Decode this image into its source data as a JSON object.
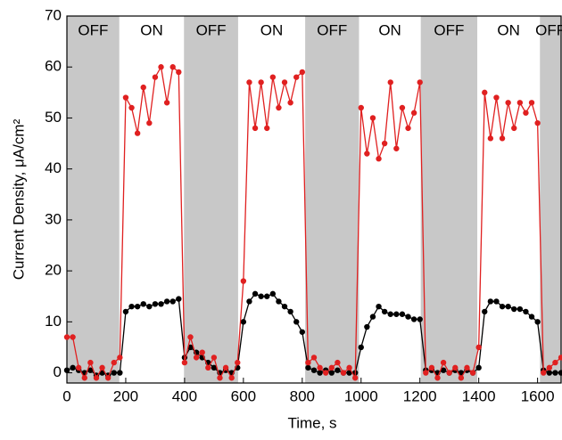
{
  "chart_data": {
    "type": "line",
    "x_label": "Time, s",
    "y_label": "Current Density, μA/cm²",
    "xlim": [
      0,
      1680
    ],
    "ylim": [
      -2,
      70
    ],
    "xticks": [
      0,
      200,
      400,
      600,
      800,
      1000,
      1200,
      1400,
      1600
    ],
    "yticks": [
      0,
      10,
      20,
      30,
      40,
      50,
      60,
      70
    ],
    "region_color": "#c8c8c8",
    "regions": [
      {
        "label": "OFF",
        "range": [
          0,
          178
        ],
        "shaded": true
      },
      {
        "label": "ON",
        "range": [
          178,
          398
        ],
        "shaded": false
      },
      {
        "label": "OFF",
        "range": [
          398,
          582
        ],
        "shaded": true
      },
      {
        "label": "ON",
        "range": [
          582,
          810
        ],
        "shaded": false
      },
      {
        "label": "OFF",
        "range": [
          810,
          993
        ],
        "shaded": true
      },
      {
        "label": "ON",
        "range": [
          993,
          1203
        ],
        "shaded": false
      },
      {
        "label": "OFF",
        "range": [
          1203,
          1395
        ],
        "shaded": true
      },
      {
        "label": "ON",
        "range": [
          1395,
          1608
        ],
        "shaded": false
      },
      {
        "label": "OFF",
        "range": [
          1608,
          1680
        ],
        "shaded": true
      }
    ],
    "x": [
      0,
      20,
      40,
      60,
      80,
      100,
      120,
      140,
      160,
      180,
      200,
      220,
      240,
      260,
      280,
      300,
      320,
      340,
      360,
      380,
      400,
      420,
      440,
      460,
      480,
      500,
      520,
      540,
      560,
      580,
      600,
      620,
      640,
      660,
      680,
      700,
      720,
      740,
      760,
      780,
      800,
      820,
      840,
      860,
      880,
      900,
      920,
      940,
      960,
      980,
      1000,
      1020,
      1040,
      1060,
      1080,
      1100,
      1120,
      1140,
      1160,
      1180,
      1200,
      1220,
      1240,
      1260,
      1280,
      1300,
      1320,
      1340,
      1360,
      1380,
      1400,
      1420,
      1440,
      1460,
      1480,
      1500,
      1520,
      1540,
      1560,
      1580,
      1600,
      1620,
      1640,
      1660,
      1680
    ],
    "series": [
      {
        "color": "#000000",
        "values": [
          0.5,
          1,
          0.5,
          0,
          0.5,
          -0.5,
          0,
          -0.5,
          0,
          0,
          12,
          13,
          13,
          13.5,
          13,
          13.5,
          13.5,
          14,
          14,
          14.5,
          3,
          5,
          4,
          3,
          2,
          1,
          0,
          0.5,
          0,
          1,
          10,
          14,
          15.5,
          15,
          15,
          15.5,
          14,
          13,
          12,
          10,
          8,
          1,
          0.5,
          0,
          0.5,
          0,
          0.5,
          0,
          0,
          0,
          5,
          9,
          11,
          13,
          12,
          11.5,
          11.5,
          11.5,
          11,
          10.5,
          10.5,
          0.5,
          0.5,
          0,
          0.5,
          0,
          0.5,
          0,
          0.5,
          0,
          1,
          12,
          14,
          14,
          13,
          13,
          12.5,
          12.5,
          12,
          11,
          10,
          0.5,
          0,
          0,
          0
        ]
      },
      {
        "color": "#e02020",
        "values": [
          7,
          7,
          1,
          -1,
          2,
          -1,
          1,
          -1,
          2,
          3,
          54,
          52,
          47,
          56,
          49,
          58,
          60,
          53,
          60,
          59,
          2,
          7,
          3,
          4,
          1,
          3,
          -1,
          1,
          -1,
          2,
          18,
          57,
          48,
          57,
          48,
          58,
          52,
          57,
          53,
          58,
          59,
          2,
          3,
          1,
          0,
          1,
          2,
          0,
          1,
          -1,
          52,
          43,
          50,
          42,
          45,
          57,
          44,
          52,
          48,
          51,
          57,
          0,
          1,
          -1,
          2,
          0,
          1,
          -1,
          1,
          0,
          5,
          55,
          46,
          54,
          46,
          53,
          48,
          53,
          51,
          53,
          49,
          0,
          1,
          2,
          3
        ]
      }
    ]
  }
}
